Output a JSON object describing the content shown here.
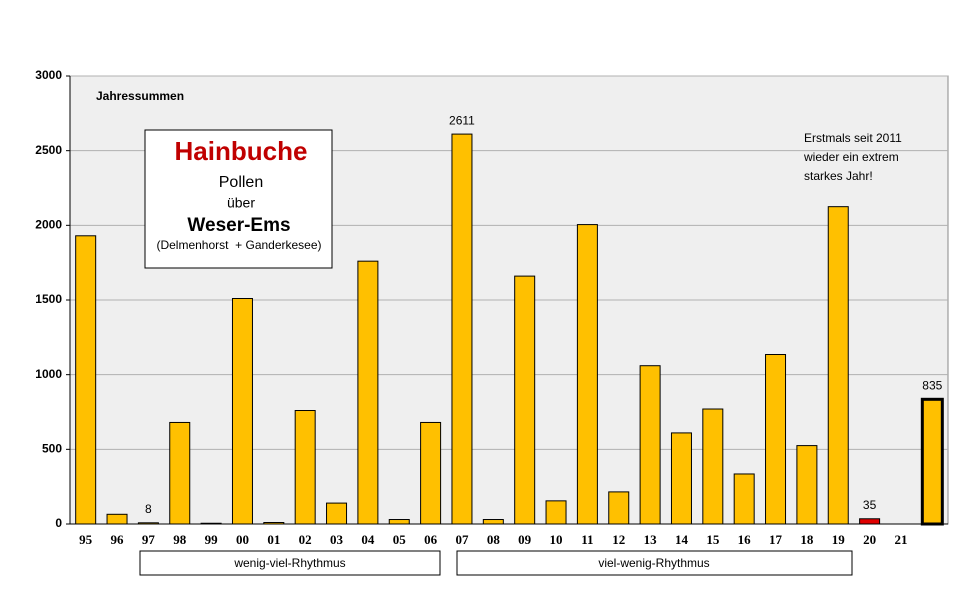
{
  "chart_data": {
    "type": "bar",
    "y_label": "Jahressummen",
    "info_box": {
      "title": "Hainbuche",
      "lines": [
        "Pollen",
        "über",
        "Weser-Ems",
        "(Delmenhorst  + Ganderkesee)"
      ]
    },
    "note": [
      "Erstmals seit 2011",
      "wieder ein extrem",
      "starkes Jahr!"
    ],
    "rhythms": [
      "wenig-viel-Rhythmus",
      "viel-wenig-Rhythmus"
    ],
    "categories": [
      "95",
      "96",
      "97",
      "98",
      "99",
      "00",
      "01",
      "02",
      "03",
      "04",
      "05",
      "06",
      "07",
      "08",
      "09",
      "10",
      "11",
      "12",
      "13",
      "14",
      "15",
      "16",
      "17",
      "18",
      "19",
      "20",
      "21",
      null
    ],
    "values": [
      1930,
      65,
      8,
      680,
      5,
      1510,
      10,
      760,
      140,
      1760,
      30,
      680,
      2611,
      30,
      1660,
      155,
      2005,
      215,
      1060,
      610,
      770,
      335,
      1135,
      525,
      2125,
      35,
      null,
      835
    ],
    "value_labels": [
      null,
      null,
      "8",
      null,
      null,
      null,
      null,
      null,
      null,
      null,
      null,
      null,
      "2611",
      null,
      null,
      null,
      null,
      null,
      null,
      null,
      null,
      null,
      null,
      null,
      null,
      "35",
      null,
      "835"
    ],
    "value_label_colors": [
      null,
      null,
      "#000",
      null,
      null,
      null,
      null,
      null,
      null,
      null,
      null,
      null,
      "#e00000",
      null,
      null,
      null,
      null,
      null,
      null,
      null,
      null,
      null,
      null,
      null,
      null,
      "#000",
      null,
      "#000"
    ],
    "colors": [
      "#ffc000",
      "#ffc000",
      "#ffc000",
      "#ffc000",
      "#ffc000",
      "#ffc000",
      "#ffc000",
      "#ffc000",
      "#ffc000",
      "#ffc000",
      "#ffc000",
      "#ffc000",
      "#ffc000",
      "#ffc000",
      "#ffc000",
      "#ffc000",
      "#ffc000",
      "#ffc000",
      "#ffc000",
      "#ffc000",
      "#ffc000",
      "#ffc000",
      "#ffc000",
      "#ffc000",
      "#ffc000",
      "#e00000",
      "#ffc000",
      "#ffc000"
    ],
    "border_widths": [
      1,
      1,
      1,
      1,
      1,
      1,
      1,
      1,
      1,
      1,
      1,
      1,
      1,
      1,
      1,
      1,
      1,
      1,
      1,
      1,
      1,
      1,
      1,
      1,
      1,
      1,
      1,
      3
    ],
    "ylim": [
      0,
      3000
    ],
    "yticks": [
      0,
      500,
      1000,
      1500,
      2000,
      2500,
      3000
    ],
    "grid": true
  }
}
